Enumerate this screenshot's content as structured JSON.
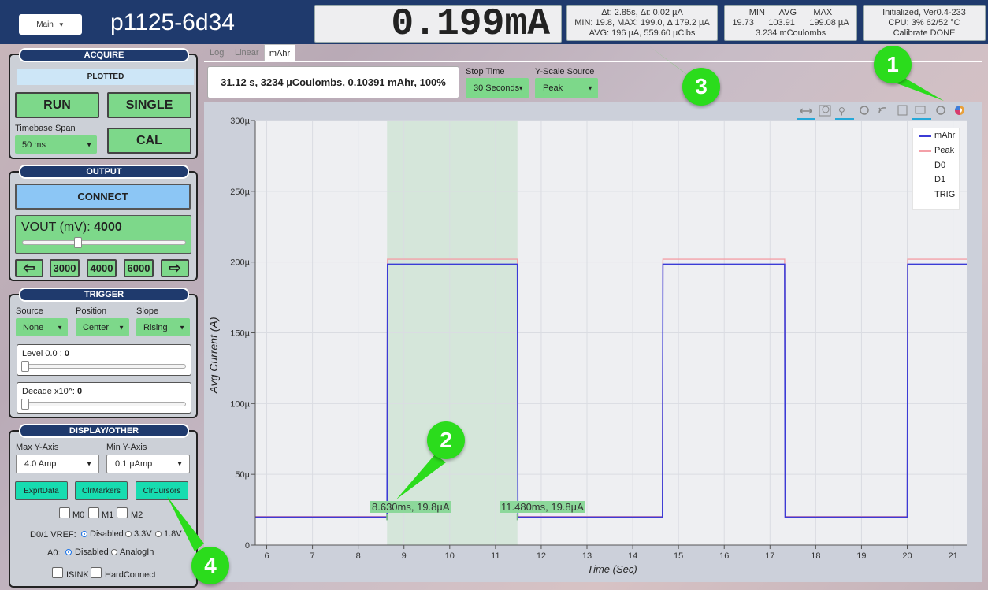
{
  "header": {
    "main_button": "Main",
    "device_name": "p1125-6d34",
    "current_reading": "0.199mA",
    "stats_delta": [
      "Δt:   2.85s, Δi:   0.02 µA",
      "MIN: 19.8, MAX: 199.0, Δ 179.2 µA",
      "AVG: 196 µA, 559.60 µClbs"
    ],
    "stats_summary_header": "MIN      AVG       MAX",
    "stats_summary_values": "19.73      103.91      199.08 µA",
    "stats_summary_coulombs": "3.234 mCoulombs",
    "status_lines": [
      "Initialized, Ver0.4-233",
      "CPU:  3% 62/52 °C",
      "Calibrate DONE"
    ]
  },
  "acquire": {
    "title": "ACQUIRE",
    "status": "PLOTTED",
    "run_label": "RUN",
    "single_label": "SINGLE",
    "cal_label": "CAL",
    "timebase_label": "Timebase Span",
    "timebase_value": "50 ms"
  },
  "output": {
    "title": "OUTPUT",
    "connect_label": "CONNECT",
    "vout_label": "VOUT (mV): ",
    "vout_value": "4000",
    "slider_fraction": 0.35,
    "left_arrow": "⇦",
    "right_arrow": "⇨",
    "presets": [
      "3000",
      "4000",
      "6000"
    ]
  },
  "trigger": {
    "title": "TRIGGER",
    "source_label": "Source",
    "source_value": "None",
    "position_label": "Position",
    "position_value": "Center",
    "slope_label": "Slope",
    "slope_value": "Rising",
    "level_label": "Level 0.0 : ",
    "level_value": "0",
    "decade_label": "Decade x10^: ",
    "decade_value": "0"
  },
  "display": {
    "title": "DISPLAY/OTHER",
    "max_y_label": "Max Y-Axis",
    "max_y_value": "4.0 Amp",
    "min_y_label": "Min Y-Axis",
    "min_y_value": "0.1 µAmp",
    "export_label": "ExprtData",
    "clr_markers_label": "ClrMarkers",
    "clr_cursors_label": "ClrCursors",
    "markers": [
      "M0",
      "M1",
      "M2"
    ],
    "vref_label": "D0/1 VREF:",
    "vref_options": [
      "Disabled",
      "3.3V",
      "1.8V"
    ],
    "a0_label": "A0:",
    "a0_options": [
      "Disabled",
      "AnalogIn"
    ],
    "isink_label": "ISINK",
    "hardconnect_label": "HardConnect"
  },
  "tabs": [
    "Log",
    "Linear",
    "mAhr"
  ],
  "summary": "31.12 s, 3234 µCoulombs, 0.10391 mAhr, 100%",
  "stop_time": {
    "label": "Stop Time",
    "value": "30 Seconds"
  },
  "yscale_source": {
    "label": "Y-Scale Source",
    "value": "Peak"
  },
  "cursor_labels": [
    "8.630ms, 19.8µA",
    "11.480ms, 19.8µA"
  ],
  "annotations": [
    "1",
    "2",
    "3",
    "4"
  ],
  "colors": {
    "mahr": "#3b3bd6",
    "peak": "#f4a0a8",
    "selection": "#d8e8dc",
    "header": "#1f3a6d",
    "button_green": "#7dd88a",
    "teal": "#17dcb0"
  },
  "chart_data": {
    "type": "line",
    "xlabel": "Time (Sec)",
    "ylabel": "Avg Current (A)",
    "xlim": [
      5.75,
      21.3
    ],
    "ylim": [
      0,
      300
    ],
    "y_unit": "µ",
    "x_ticks": [
      6,
      7,
      8,
      9,
      10,
      11,
      12,
      13,
      14,
      15,
      16,
      17,
      18,
      19,
      20,
      21
    ],
    "y_ticks": [
      0,
      50,
      100,
      150,
      200,
      250,
      300
    ],
    "y_tick_labels": [
      "0",
      "50µ",
      "100µ",
      "150µ",
      "200µ",
      "250µ",
      "300µ"
    ],
    "selection": [
      8.63,
      11.48
    ],
    "legend": [
      "mAhr",
      "Peak",
      "D0",
      "D1",
      "TRIG"
    ],
    "legend_position": "top-right",
    "grid": true,
    "series": [
      {
        "name": "mAhr",
        "color": "#3b3bd6",
        "x": [
          5.75,
          8.63,
          8.64,
          11.48,
          11.49,
          14.65,
          14.66,
          17.32,
          17.33,
          20.0,
          20.01,
          21.3
        ],
        "y": [
          19.8,
          19.8,
          198.5,
          198.5,
          19.8,
          19.8,
          198.5,
          198.5,
          19.8,
          19.8,
          198.5,
          198.5
        ]
      },
      {
        "name": "Peak",
        "color": "#f4a0a8",
        "x": [
          5.75,
          8.63,
          8.64,
          11.48,
          11.49,
          14.65,
          14.66,
          17.32,
          17.33,
          20.0,
          20.01,
          21.3
        ],
        "y": [
          20.2,
          20.2,
          202,
          202,
          20.2,
          20.2,
          202,
          202,
          20.2,
          20.2,
          202,
          202
        ]
      }
    ]
  }
}
